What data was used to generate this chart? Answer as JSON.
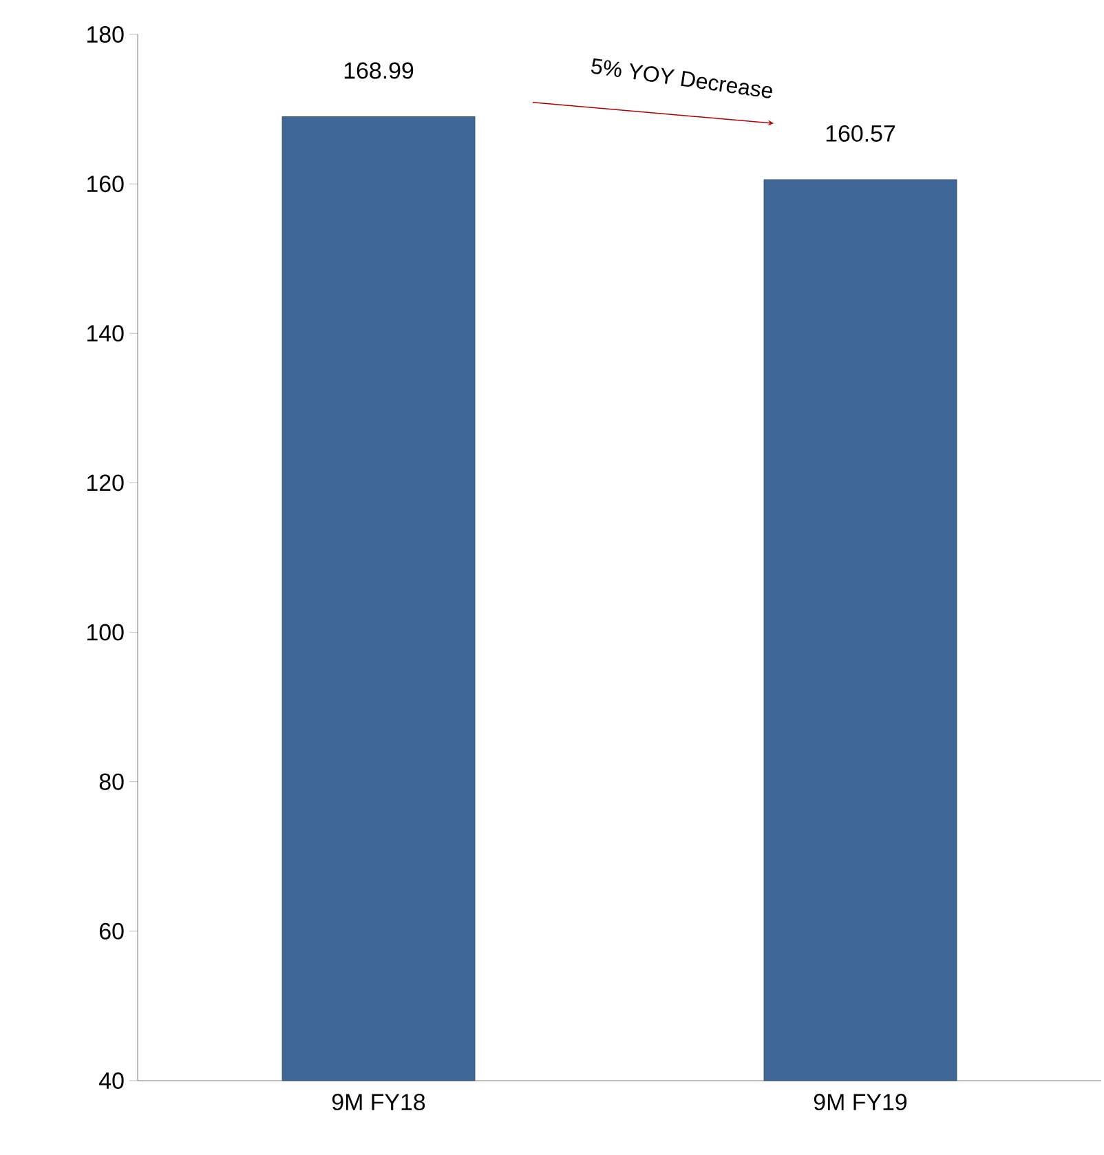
{
  "chart_data": {
    "type": "bar",
    "categories": [
      "9M FY18",
      "9M FY19"
    ],
    "values": [
      168.99,
      160.57
    ],
    "color": "#3f6898",
    "ylim": [
      40,
      180
    ],
    "yticks": [
      40,
      60,
      80,
      100,
      120,
      140,
      160,
      180
    ],
    "data_labels": true,
    "annotations": [
      "5% YOY Decrease"
    ]
  }
}
